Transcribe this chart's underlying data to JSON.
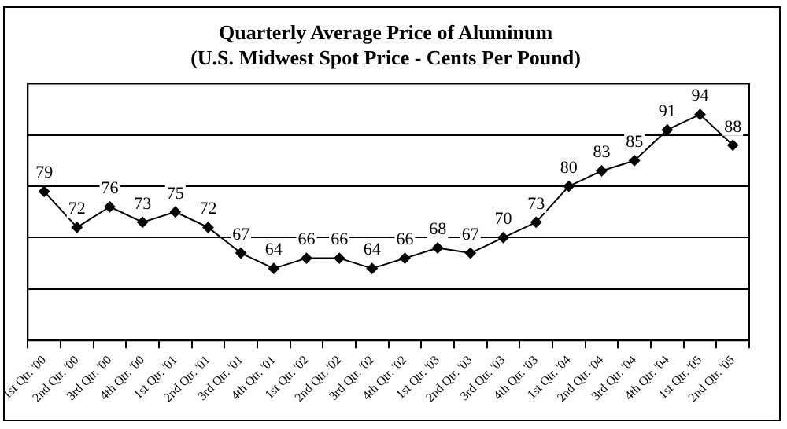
{
  "chart_data": {
    "type": "line",
    "title": "Quarterly Average Price of Aluminum",
    "subtitle": "(U.S. Midwest Spot Price - Cents Per Pound)",
    "categories": [
      "1st Qtr. '00",
      "2nd Qtr. '00",
      "3rd Qtr. '00",
      "4th Qtr. '00",
      "1st Qtr. '01",
      "2nd Qtr. '01",
      "3rd Qtr. '01",
      "4th Qtr. '01",
      "1st Qtr. '02",
      "2nd Qtr. '02",
      "3rd Qtr. '02",
      "4th Qtr. '02",
      "1st Qtr. '03",
      "2nd Qtr. '03",
      "3rd Qtr. '03",
      "4th Qtr. '03",
      "1st Qtr. '04",
      "2nd Qtr. '04",
      "3rd Qtr. '04",
      "4th Qtr. '04",
      "1st Qtr. '05",
      "2nd Qtr. '05"
    ],
    "series": [
      {
        "color": "#000000",
        "values": [
          79,
          72,
          76,
          73,
          75,
          72,
          67,
          64,
          66,
          66,
          64,
          66,
          68,
          67,
          70,
          73,
          80,
          83,
          85,
          91,
          94,
          88
        ]
      }
    ],
    "ylim": [
      50,
      100
    ],
    "yticks": [
      {
        "value": 50,
        "label": null
      },
      {
        "value": 60,
        "label": null
      },
      {
        "value": 70,
        "label": null
      },
      {
        "value": 80,
        "label": null
      },
      {
        "value": 90,
        "label": null
      },
      {
        "value": 100,
        "label": null
      }
    ],
    "tick_labels": "x",
    "grid": "y",
    "marker": "diamond",
    "line_style": "solid",
    "data_labels": true
  }
}
